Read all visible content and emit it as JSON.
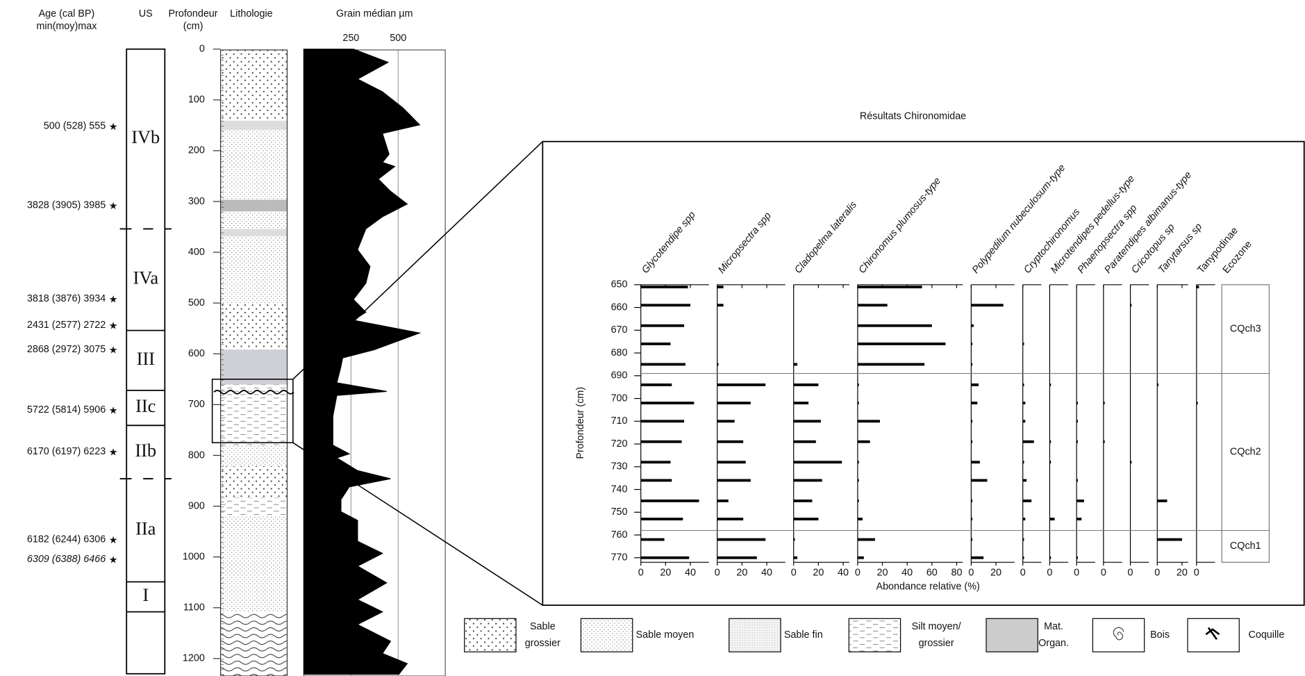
{
  "header": {
    "age": [
      "Age (cal BP)",
      "min(moy)max"
    ],
    "us": "US",
    "depth": [
      "Profondeur",
      "(cm)"
    ],
    "lithology": "Lithologie",
    "grain": "Grain médian µm"
  },
  "ages": [
    {
      "label": "500 (528) 555",
      "depth": 152
    },
    {
      "label": "3828 (3905) 3985",
      "depth": 308
    },
    {
      "label": "3818 (3876) 3934",
      "depth": 492
    },
    {
      "label": "2431 (2577) 2722",
      "depth": 544
    },
    {
      "label": "2868 (2972) 3075",
      "depth": 592
    },
    {
      "label": "5722 (5814) 5906",
      "depth": 711
    },
    {
      "label": "6170 (6197) 6223",
      "depth": 793
    },
    {
      "label": "6182 (6244) 6306",
      "depth": 966
    },
    {
      "label": "6309 (6388) 6466",
      "depth": 1005,
      "italic": true
    }
  ],
  "units": [
    {
      "label": "IVb",
      "top": 0,
      "bottom": 354,
      "dashed_bottom": true
    },
    {
      "label": "IVa",
      "top": 354,
      "bottom": 554
    },
    {
      "label": "III",
      "top": 554,
      "bottom": 672
    },
    {
      "label": "IIc",
      "top": 672,
      "bottom": 741
    },
    {
      "label": "IIb",
      "top": 741,
      "bottom": 846,
      "dashed_bottom": true
    },
    {
      "label": "IIa",
      "top": 846,
      "bottom": 1049
    },
    {
      "label": "I",
      "top": 1049,
      "bottom": 1108
    }
  ],
  "chart_data": [
    {
      "type": "area",
      "ylim": [
        0,
        1230
      ],
      "yticks": [
        0,
        100,
        200,
        300,
        400,
        500,
        600,
        700,
        800,
        900,
        1000,
        1100,
        1200
      ],
      "xlim": [
        0,
        750
      ],
      "xticks": [
        250,
        500
      ],
      "color": "#000000",
      "depth": [
        0,
        26,
        59,
        84,
        116,
        149,
        166,
        207,
        223,
        231,
        256,
        280,
        305,
        330,
        354,
        395,
        428,
        461,
        493,
        518,
        534,
        559,
        592,
        608,
        625,
        657,
        674,
        682,
        723,
        780,
        797,
        805,
        830,
        846,
        862,
        887,
        911,
        928,
        969,
        993,
        1018,
        1051,
        1084,
        1108,
        1133,
        1166,
        1190,
        1210,
        1231
      ],
      "values": [
        263,
        447,
        285,
        417,
        526,
        614,
        417,
        452,
        417,
        482,
        395,
        460,
        548,
        417,
        329,
        285,
        351,
        329,
        263,
        329,
        263,
        614,
        373,
        206,
        197,
        175,
        439,
        175,
        154,
        154,
        241,
        175,
        285,
        460,
        241,
        197,
        197,
        285,
        285,
        417,
        285,
        439,
        285,
        417,
        285,
        460,
        417,
        548,
        504
      ]
    },
    {
      "type": "panel-bar",
      "title": "Résultats Chironomidae",
      "ylabel": "Profondeur (cm)",
      "xlabel": "Abondance relative (%)",
      "ylim": [
        650,
        772
      ],
      "yticks": [
        650,
        660,
        670,
        680,
        690,
        700,
        710,
        720,
        730,
        740,
        750,
        760,
        770
      ],
      "color": "#000000",
      "depths": [
        651,
        659,
        668,
        676,
        685,
        694,
        702,
        710,
        719,
        728,
        736,
        745,
        753,
        762,
        770
      ],
      "panels": [
        {
          "name": "Glycotendipe spp",
          "italic": true,
          "xlim": [
            0,
            55
          ],
          "xticks": [
            0,
            20,
            40
          ],
          "values": [
            38,
            40,
            35,
            24,
            36,
            25,
            43,
            35,
            33,
            24,
            25,
            47,
            34,
            19,
            39
          ]
        },
        {
          "name": "Micropsectra spp",
          "italic": true,
          "xlim": [
            0,
            55
          ],
          "xticks": [
            0,
            20,
            40
          ],
          "values": [
            5,
            5,
            0,
            0,
            1,
            39,
            27,
            14,
            21,
            23,
            27,
            9,
            21,
            39,
            32
          ]
        },
        {
          "name": "Cladopelma lateralis",
          "italic": true,
          "xlim": [
            0,
            45
          ],
          "xticks": [
            0,
            20,
            40
          ],
          "values": [
            0,
            0,
            0,
            0,
            3,
            20,
            12,
            22,
            18,
            39,
            23,
            15,
            20,
            1,
            3
          ]
        },
        {
          "name": "Chironomus plumosus-type",
          "italic": true,
          "xlim": [
            0,
            85
          ],
          "xticks": [
            0,
            20,
            40,
            60,
            80
          ],
          "values": [
            52,
            24,
            60,
            71,
            54,
            1,
            1,
            18,
            10,
            1,
            1,
            1,
            4,
            14,
            5
          ]
        },
        {
          "name": "Polypedilum nubeculosum-type",
          "italic": true,
          "xlim": [
            0,
            35
          ],
          "xticks": [
            0,
            20
          ],
          "values": [
            0,
            26,
            2,
            1,
            1,
            6,
            5,
            1,
            1,
            7,
            13,
            1,
            1,
            1,
            10
          ]
        },
        {
          "name": "Cryptochironomus",
          "italic": true,
          "xlim": [
            0,
            15
          ],
          "xticks": [
            0
          ],
          "values": [
            0,
            0,
            0,
            1,
            0,
            1,
            2,
            2,
            9,
            1,
            3,
            7,
            2,
            1,
            1
          ]
        },
        {
          "name": "Microtendipes pedellus-type",
          "italic": true,
          "xlim": [
            0,
            15
          ],
          "xticks": [
            0
          ],
          "values": [
            0,
            0,
            0,
            0,
            0,
            1,
            0,
            0,
            1,
            1,
            0,
            0,
            4,
            0,
            1
          ]
        },
        {
          "name": "Phaenopsectra spp",
          "italic": true,
          "xlim": [
            0,
            15
          ],
          "xticks": [
            0
          ],
          "values": [
            0,
            0,
            0,
            0,
            0,
            0,
            1,
            1,
            1,
            0,
            1,
            6,
            4,
            0,
            1
          ]
        },
        {
          "name": "Paratendipes albimanus-type",
          "italic": true,
          "xlim": [
            0,
            15
          ],
          "xticks": [
            0
          ],
          "values": [
            0,
            0,
            0,
            0,
            0,
            0,
            1,
            0,
            1,
            0,
            0,
            0,
            0,
            0,
            0
          ]
        },
        {
          "name": "Cricotopus sp",
          "italic": true,
          "xlim": [
            0,
            15
          ],
          "xticks": [
            0
          ],
          "values": [
            0,
            1,
            0,
            0,
            0,
            0,
            0,
            0,
            0,
            1,
            0,
            0,
            0,
            0,
            0
          ]
        },
        {
          "name": "Tanytarsus sp",
          "italic": true,
          "xlim": [
            0,
            25
          ],
          "xticks": [
            0,
            20
          ],
          "values": [
            0,
            0,
            0,
            0,
            0,
            1,
            0,
            0,
            0,
            0,
            0,
            8,
            0,
            20,
            0
          ]
        },
        {
          "name": "Tanypodinae",
          "xlim": [
            0,
            15
          ],
          "xticks": [
            0
          ],
          "values": [
            2,
            0,
            0,
            0,
            0,
            0,
            1,
            0,
            0,
            0,
            0,
            0,
            0,
            0,
            0
          ]
        }
      ],
      "zones_title": "Ecozone",
      "zones": [
        {
          "label": "CQch3",
          "top": 650,
          "bottom": 689
        },
        {
          "label": "CQch2",
          "top": 689,
          "bottom": 758
        },
        {
          "label": "CQch1",
          "top": 758,
          "bottom": 772
        }
      ]
    }
  ],
  "legend": [
    [
      "Sable",
      "grossier"
    ],
    [
      "Sable moyen"
    ],
    [
      "Sable fin"
    ],
    [
      "Silt moyen/",
      "grossier"
    ],
    [
      "Mat.",
      "Organ."
    ],
    [
      "Bois"
    ],
    [
      "Coquille"
    ]
  ]
}
